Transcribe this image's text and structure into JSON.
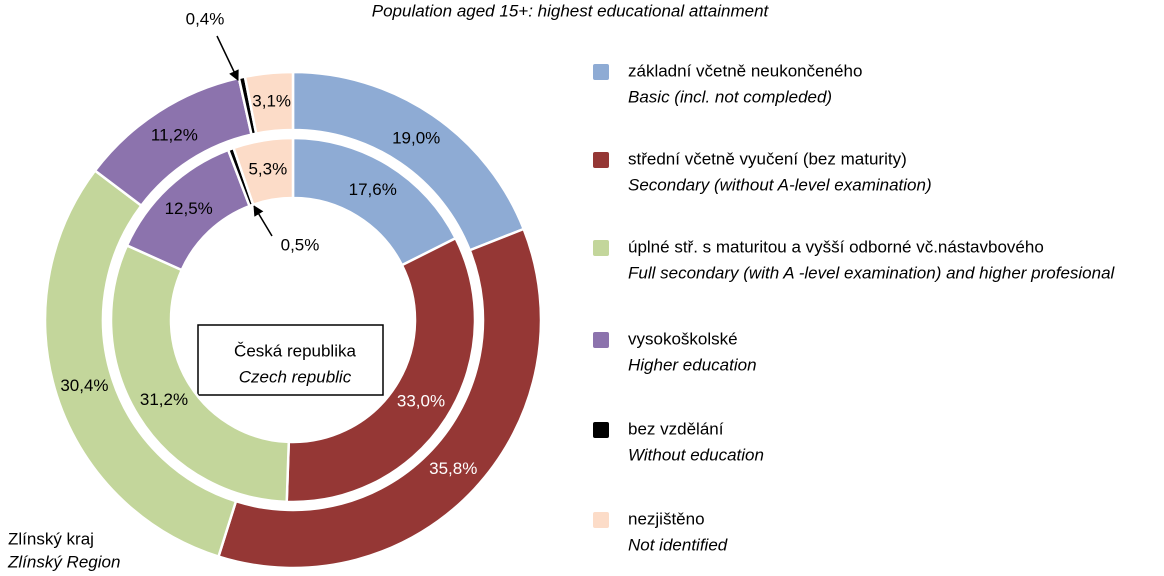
{
  "chart_data": {
    "type": "donut",
    "title": "Population aged 15+: highest educational attainment",
    "categories": [
      "základní včetně neukončeného",
      "střední včetně vyučení (bez maturity)",
      "úplné stř. s maturitou a vyšší odborné vč.nástavbového",
      "vysokoškolské",
      "bez vzdělání",
      "nezjištěno"
    ],
    "categories_en": [
      "Basic (incl. not compleded)",
      "Secondary  (without A-level examination)",
      "Full secondary  (with A -level examination) and higher profesional",
      "Higher education",
      "Without education",
      "Not identified"
    ],
    "colors": [
      "#8eabd4",
      "#953735",
      "#c3d69b",
      "#8c73ad",
      "#000000",
      "#fcdcc8"
    ],
    "series": [
      {
        "name": "Zlínský kraj",
        "name_en": "Zlínský Region",
        "values": [
          19.0,
          35.8,
          30.4,
          11.2,
          0.4,
          3.1
        ],
        "value_labels": [
          "19,0%",
          "35,8%",
          "30,4%",
          "11,2%",
          "0,4%",
          "3,1%"
        ]
      },
      {
        "name": "Česká republika",
        "name_en": "Czech republic",
        "values": [
          17.6,
          33.0,
          31.2,
          12.5,
          0.5,
          5.3
        ],
        "value_labels": [
          "17,6%",
          "33,0%",
          "31,2%",
          "12,5%",
          "0,5%",
          "5,3%"
        ]
      }
    ]
  }
}
